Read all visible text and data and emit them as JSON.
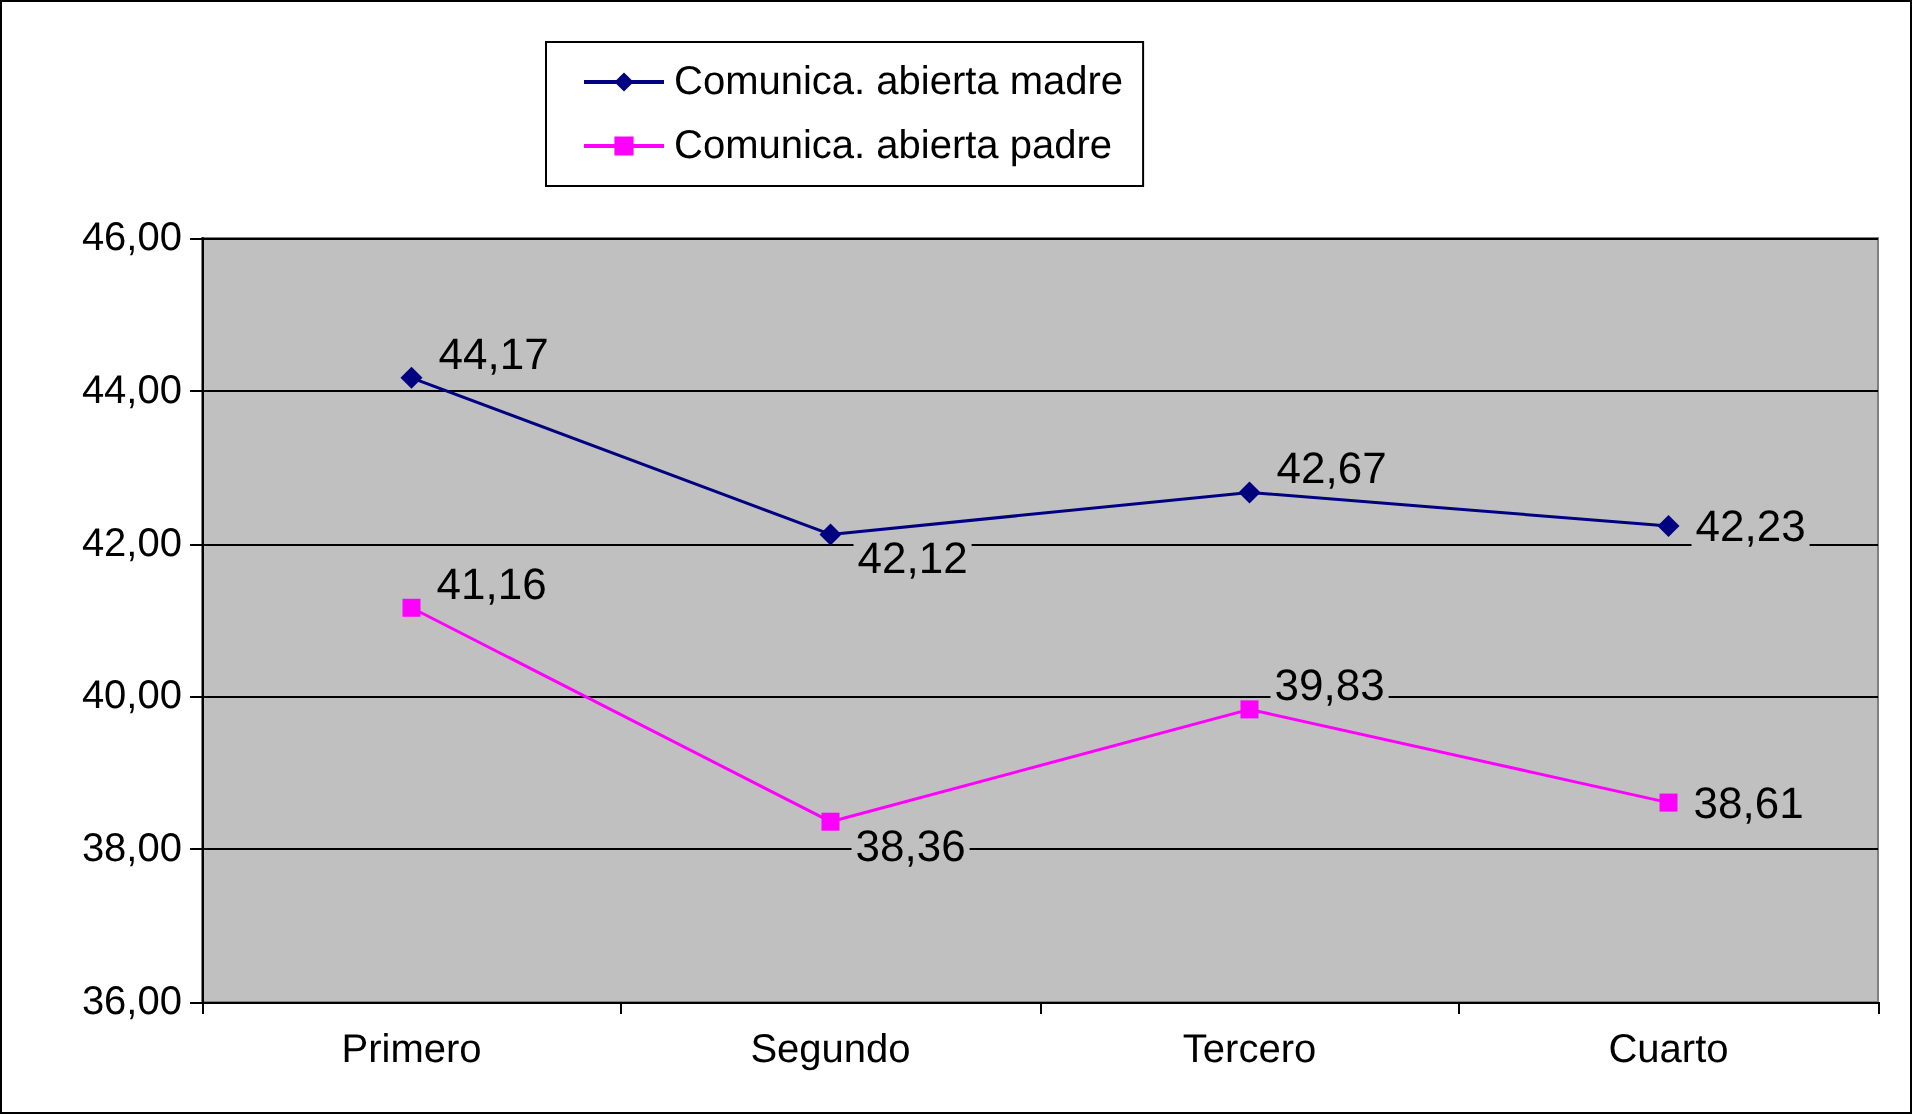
{
  "chart_data": {
    "type": "line",
    "categories": [
      "Primero",
      "Segundo",
      "Tercero",
      "Cuarto"
    ],
    "series": [
      {
        "name": "Comunica. abierta madre",
        "color": "#000080",
        "marker": "diamond",
        "values": [
          44.17,
          42.12,
          42.67,
          42.23
        ],
        "value_labels": [
          "44,17",
          "42,12",
          "42,67",
          "42,23"
        ]
      },
      {
        "name": "Comunica. abierta padre",
        "color": "#ff00ff",
        "marker": "square",
        "values": [
          41.16,
          38.36,
          39.83,
          38.61
        ],
        "value_labels": [
          "41,16",
          "38,36",
          "39,83",
          "38,61"
        ]
      }
    ],
    "ylim": [
      36,
      46
    ],
    "yticks": [
      {
        "value": 36,
        "label": "36,00"
      },
      {
        "value": 38,
        "label": "38,00"
      },
      {
        "value": 40,
        "label": "40,00"
      },
      {
        "value": 42,
        "label": "42,00"
      },
      {
        "value": 44,
        "label": "44,00"
      },
      {
        "value": 46,
        "label": "46,00"
      }
    ],
    "grid": "y",
    "legend": "top",
    "line_style": "solid"
  }
}
